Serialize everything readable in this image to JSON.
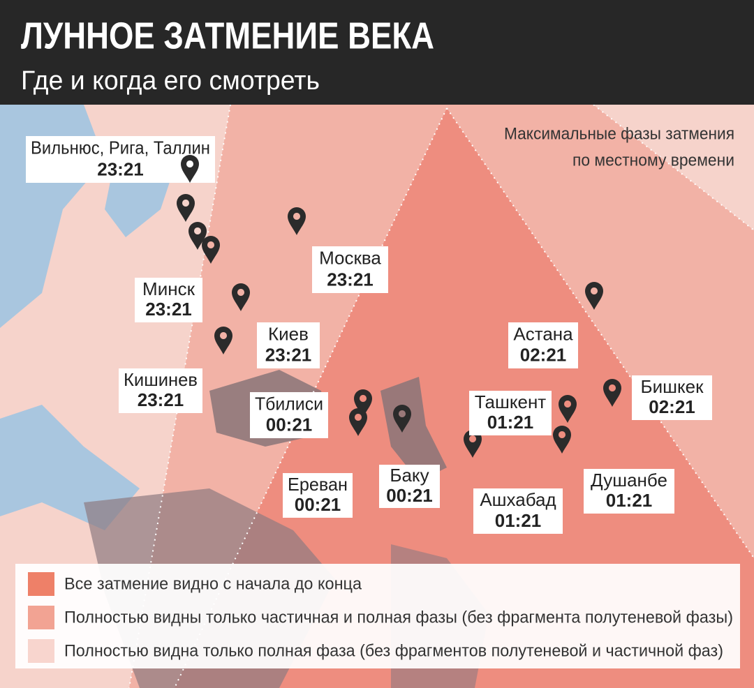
{
  "header": {
    "title": "ЛУННОЕ ЗАТМЕНИЕ ВЕКА",
    "subtitle": "Где и когда его смотреть"
  },
  "note": {
    "lines": [
      "Максимальные фазы затмения",
      "по местному времени"
    ]
  },
  "cities": [
    {
      "name": "Вильнюс, Рига, Таллин",
      "time": "23:21"
    },
    {
      "name": "Москва",
      "time": "23:21"
    },
    {
      "name": "Минск",
      "time": "23:21"
    },
    {
      "name": "Киев",
      "time": "23:21"
    },
    {
      "name": "Кишинев",
      "time": "23:21"
    },
    {
      "name": "Тбилиси",
      "time": "00:21"
    },
    {
      "name": "Ереван",
      "time": "00:21"
    },
    {
      "name": "Баку",
      "time": "00:21"
    },
    {
      "name": "Ашхабад",
      "time": "01:21"
    },
    {
      "name": "Астана",
      "time": "02:21"
    },
    {
      "name": "Ташкент",
      "time": "01:21"
    },
    {
      "name": "Бишкек",
      "time": "02:21"
    },
    {
      "name": "Душанбе",
      "time": "01:21"
    }
  ],
  "legend": {
    "items": [
      {
        "label": "Все затмение видно с начала до конца"
      },
      {
        "label": "Полностью видны только частичная и полная фазы (без фрагмента полутеневой фазы)"
      },
      {
        "label": "Полностью видна только полная фаза (без фрагментов полутеневой и частичной фаз)"
      }
    ]
  }
}
